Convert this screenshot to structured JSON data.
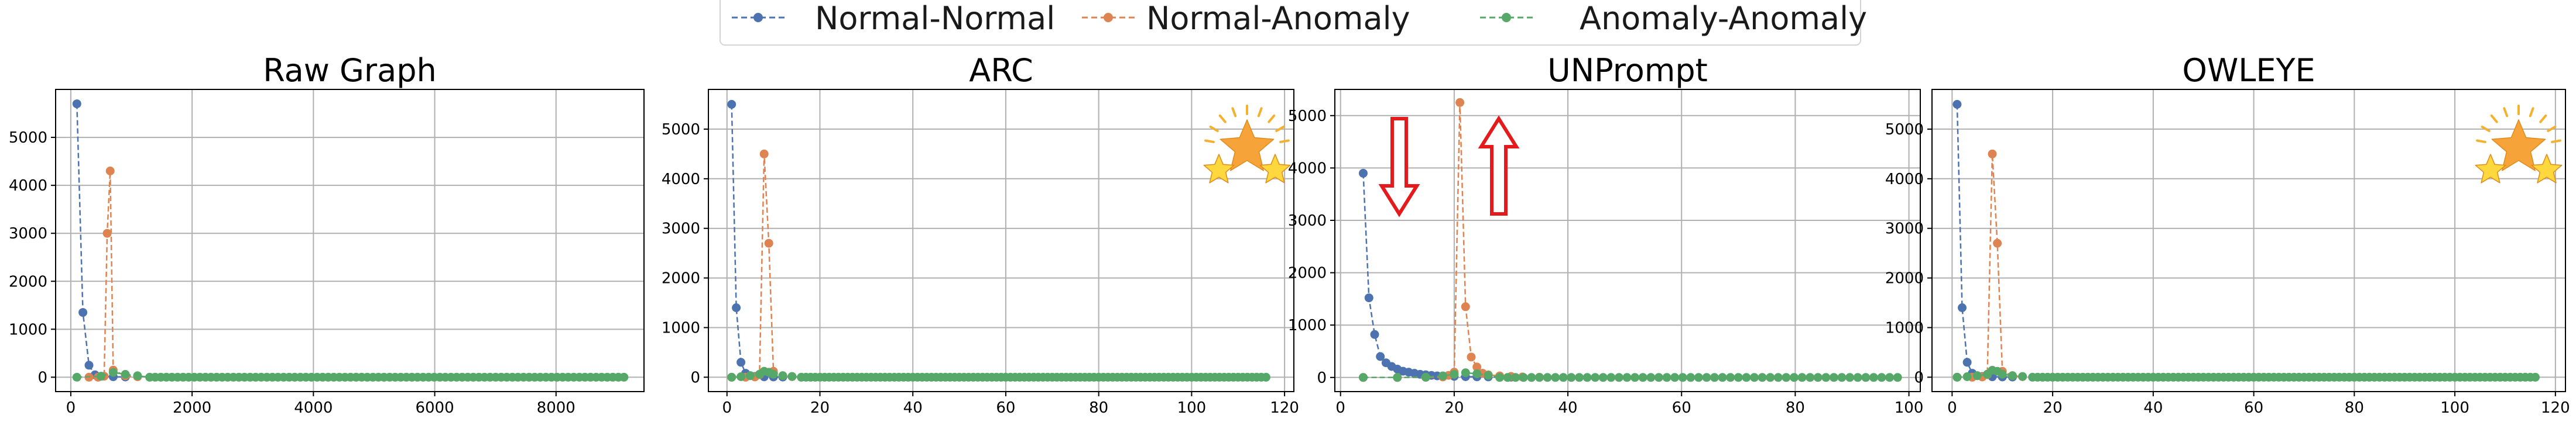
{
  "legend": {
    "entries": [
      {
        "label": "Normal-Normal",
        "color": "#4c72b0"
      },
      {
        "label": "Normal-Anomaly",
        "color": "#dd8452"
      },
      {
        "label": "Anomaly-Anomaly",
        "color": "#55a868"
      }
    ]
  },
  "chart_data": [
    {
      "type": "line",
      "title": "Raw Graph",
      "xlim": [
        -250,
        9450
      ],
      "ylim": [
        -300,
        6000
      ],
      "xticks": [
        0,
        2000,
        4000,
        6000,
        8000
      ],
      "yticks": [
        0,
        1000,
        2000,
        3000,
        4000,
        5000
      ],
      "grid": true,
      "decoration": "none",
      "series": [
        {
          "name": "Normal-Normal",
          "x": [
            100,
            200,
            300,
            400,
            500,
            700,
            900
          ],
          "y": [
            5700,
            1350,
            250,
            50,
            20,
            10,
            5
          ]
        },
        {
          "name": "Normal-Anomaly",
          "x": [
            300,
            450,
            550,
            600,
            650,
            700,
            900,
            1100
          ],
          "y": [
            0,
            0,
            20,
            3000,
            4300,
            150,
            30,
            10
          ]
        },
        {
          "name": "Anomaly-Anomaly",
          "x": [
            100,
            500,
            700,
            900,
            1100
          ],
          "y": [
            0,
            20,
            100,
            60,
            30
          ],
          "tail_from": 1300,
          "tail_to": 9150,
          "tail_step": 92
        }
      ]
    },
    {
      "type": "line",
      "title": "ARC",
      "xlim": [
        -4,
        122
      ],
      "ylim": [
        -290,
        5800
      ],
      "xticks": [
        0,
        20,
        40,
        60,
        80,
        100,
        120
      ],
      "yticks": [
        0,
        1000,
        2000,
        3000,
        4000,
        5000
      ],
      "grid": true,
      "decoration": "stars",
      "series": [
        {
          "name": "Normal-Normal",
          "x": [
            1,
            2,
            3,
            4,
            5,
            6,
            8,
            10,
            12
          ],
          "y": [
            5500,
            1400,
            300,
            80,
            30,
            15,
            8,
            5,
            3
          ]
        },
        {
          "name": "Normal-Anomaly",
          "x": [
            1,
            4,
            6,
            7,
            8,
            9,
            10,
            12,
            14
          ],
          "y": [
            0,
            0,
            5,
            50,
            4500,
            2700,
            120,
            30,
            10
          ]
        },
        {
          "name": "Anomaly-Anomaly",
          "x": [
            1,
            3,
            5,
            7,
            8,
            9,
            10,
            12,
            14
          ],
          "y": [
            0,
            10,
            30,
            60,
            120,
            100,
            60,
            30,
            15
          ],
          "tail_from": 16,
          "tail_to": 116,
          "tail_step": 1
        }
      ]
    },
    {
      "type": "line",
      "title": "UNPrompt",
      "xlim": [
        -1,
        102
      ],
      "ylim": [
        -270,
        5500
      ],
      "xticks": [
        0,
        20,
        40,
        60,
        80,
        100
      ],
      "yticks": [
        0,
        1000,
        2000,
        3000,
        4000,
        5000
      ],
      "grid": true,
      "decoration": "arrows",
      "series": [
        {
          "name": "Normal-Normal",
          "x": [
            4,
            5,
            6,
            7,
            8,
            9,
            10,
            11,
            12,
            13,
            14,
            15,
            16,
            17,
            18,
            20,
            22,
            24,
            26,
            28,
            30
          ],
          "y": [
            3900,
            1520,
            820,
            400,
            280,
            210,
            160,
            120,
            100,
            80,
            60,
            50,
            40,
            30,
            25,
            20,
            15,
            12,
            10,
            8,
            6
          ]
        },
        {
          "name": "Normal-Anomaly",
          "x": [
            4,
            10,
            15,
            18,
            19,
            20,
            21,
            22,
            23,
            24,
            25,
            26,
            28,
            30,
            32,
            35
          ],
          "y": [
            0,
            0,
            2,
            10,
            40,
            100,
            5250,
            1350,
            390,
            200,
            80,
            50,
            30,
            20,
            10,
            5
          ]
        },
        {
          "name": "Anomaly-Anomaly",
          "x": [
            4,
            10,
            15,
            18,
            20,
            22,
            24,
            26
          ],
          "y": [
            0,
            0,
            5,
            30,
            60,
            90,
            70,
            40
          ],
          "tail_from": 28,
          "tail_to": 98,
          "tail_step": 1.4
        }
      ]
    },
    {
      "type": "line",
      "title": "OWLEYE",
      "xlim": [
        -4,
        122
      ],
      "ylim": [
        -290,
        5800
      ],
      "xticks": [
        0,
        20,
        40,
        60,
        80,
        100,
        120
      ],
      "yticks": [
        0,
        1000,
        2000,
        3000,
        4000,
        5000
      ],
      "grid": true,
      "decoration": "stars",
      "series": [
        {
          "name": "Normal-Normal",
          "x": [
            1,
            2,
            3,
            4,
            5,
            6,
            8,
            10,
            12
          ],
          "y": [
            5500,
            1400,
            300,
            80,
            30,
            15,
            8,
            5,
            3
          ]
        },
        {
          "name": "Normal-Anomaly",
          "x": [
            1,
            4,
            6,
            7,
            8,
            9,
            10,
            12,
            14
          ],
          "y": [
            0,
            0,
            5,
            50,
            4500,
            2700,
            120,
            30,
            10
          ]
        },
        {
          "name": "Anomaly-Anomaly",
          "x": [
            1,
            3,
            5,
            7,
            8,
            9,
            10,
            12,
            14
          ],
          "y": [
            0,
            10,
            30,
            60,
            140,
            120,
            60,
            30,
            15
          ],
          "tail_from": 16,
          "tail_to": 116,
          "tail_step": 1
        }
      ]
    }
  ]
}
